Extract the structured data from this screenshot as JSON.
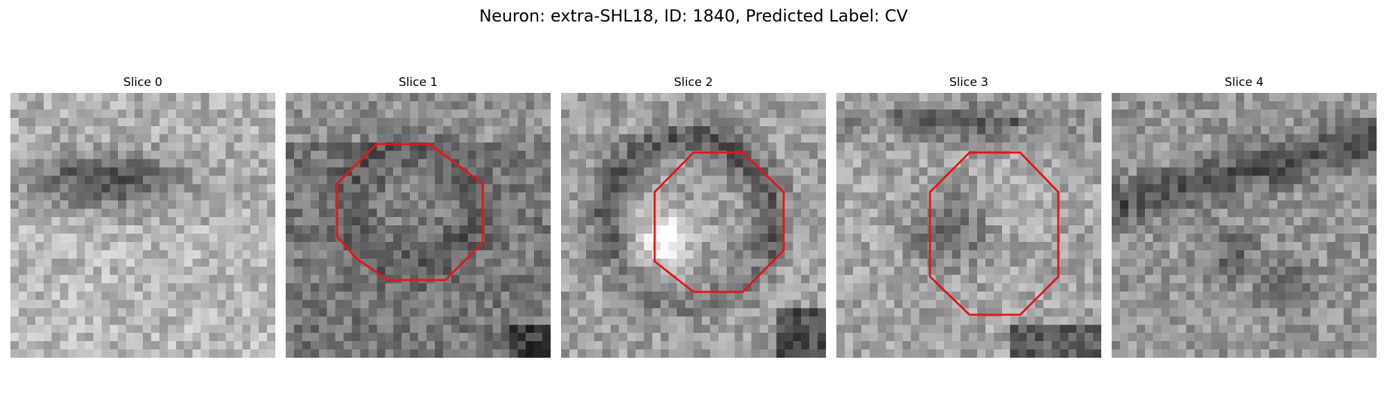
{
  "figure": {
    "suptitle": "Neuron: extra-SHL18, ID: 1840, Predicted Label: CV"
  },
  "slices": [
    {
      "title": "Slice 0",
      "contour": false
    },
    {
      "title": "Slice 1",
      "contour": true
    },
    {
      "title": "Slice 2",
      "contour": true
    },
    {
      "title": "Slice 3",
      "contour": true
    },
    {
      "title": "Slice 4",
      "contour": false
    }
  ],
  "colors": {
    "contour": "#e8141a",
    "colormap": "gray"
  }
}
